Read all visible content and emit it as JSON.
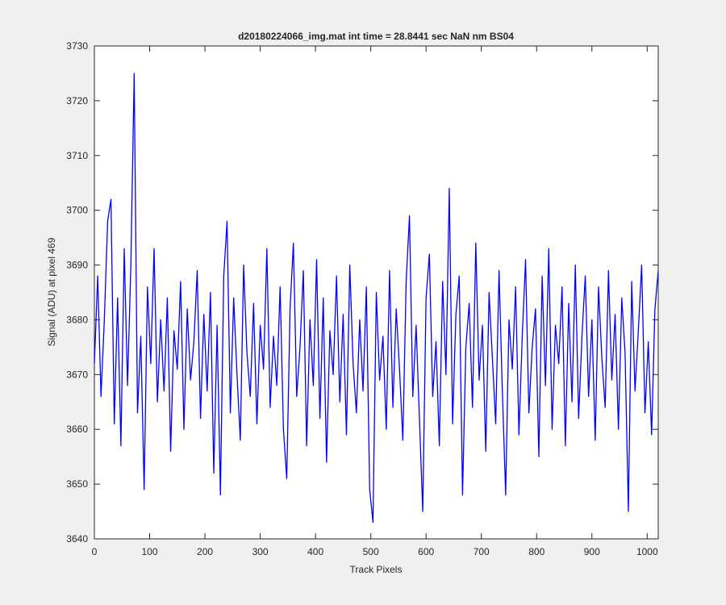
{
  "chart_data": {
    "type": "line",
    "title": "d20180224066_img.mat int time = 28.8441 sec  NaN nm BS04",
    "x_label": "Track Pixels",
    "y_label": "Signal (ADU) at pixel 469",
    "xlim": [
      0,
      1020
    ],
    "ylim": [
      3640,
      3730
    ],
    "xticks": [
      0,
      100,
      200,
      300,
      400,
      500,
      600,
      700,
      800,
      900,
      1000
    ],
    "yticks": [
      3640,
      3650,
      3660,
      3670,
      3680,
      3690,
      3700,
      3710,
      3720,
      3730
    ],
    "grid": false,
    "x": [
      0,
      6,
      12,
      18,
      24,
      30,
      36,
      42,
      48,
      54,
      60,
      66,
      72,
      78,
      84,
      90,
      96,
      102,
      108,
      114,
      120,
      126,
      132,
      138,
      144,
      150,
      156,
      162,
      168,
      174,
      180,
      186,
      192,
      198,
      204,
      210,
      216,
      222,
      228,
      234,
      240,
      246,
      252,
      258,
      264,
      270,
      276,
      282,
      288,
      294,
      300,
      306,
      312,
      318,
      324,
      330,
      336,
      342,
      348,
      354,
      360,
      366,
      372,
      378,
      384,
      390,
      396,
      402,
      408,
      414,
      420,
      426,
      432,
      438,
      444,
      450,
      456,
      462,
      468,
      474,
      480,
      486,
      492,
      498,
      504,
      510,
      516,
      522,
      528,
      534,
      540,
      546,
      552,
      558,
      564,
      570,
      576,
      582,
      588,
      594,
      600,
      606,
      612,
      618,
      624,
      630,
      636,
      642,
      648,
      654,
      660,
      666,
      672,
      678,
      684,
      690,
      696,
      702,
      708,
      714,
      720,
      726,
      732,
      738,
      744,
      750,
      756,
      762,
      768,
      774,
      780,
      786,
      792,
      798,
      804,
      810,
      816,
      822,
      828,
      834,
      840,
      846,
      852,
      858,
      864,
      870,
      876,
      882,
      888,
      894,
      900,
      906,
      912,
      918,
      924,
      930,
      936,
      942,
      948,
      954,
      960,
      966,
      972,
      978,
      984,
      990,
      996,
      1002,
      1008,
      1014,
      1020
    ],
    "series": [
      {
        "color": "#0000ff",
        "values": [
          3672,
          3688,
          3666,
          3680,
          3698,
          3702,
          3661,
          3684,
          3657,
          3693,
          3668,
          3690,
          3725,
          3663,
          3677,
          3649,
          3686,
          3672,
          3693,
          3665,
          3680,
          3667,
          3684,
          3656,
          3678,
          3671,
          3687,
          3660,
          3682,
          3669,
          3676,
          3689,
          3662,
          3681,
          3667,
          3685,
          3652,
          3679,
          3648,
          3688,
          3698,
          3663,
          3684,
          3670,
          3658,
          3690,
          3674,
          3666,
          3683,
          3661,
          3679,
          3671,
          3693,
          3664,
          3677,
          3668,
          3686,
          3660,
          3651,
          3682,
          3694,
          3666,
          3675,
          3689,
          3657,
          3680,
          3668,
          3691,
          3662,
          3684,
          3654,
          3678,
          3670,
          3688,
          3665,
          3681,
          3659,
          3690,
          3672,
          3663,
          3680,
          3667,
          3686,
          3649,
          3643,
          3685,
          3669,
          3677,
          3660,
          3689,
          3664,
          3682,
          3671,
          3658,
          3687,
          3699,
          3666,
          3679,
          3662,
          3645,
          3684,
          3692,
          3666,
          3676,
          3657,
          3687,
          3670,
          3704,
          3661,
          3681,
          3688,
          3648,
          3675,
          3683,
          3664,
          3694,
          3669,
          3679,
          3656,
          3685,
          3673,
          3661,
          3689,
          3667,
          3648,
          3680,
          3671,
          3686,
          3659,
          3677,
          3691,
          3663,
          3675,
          3682,
          3655,
          3688,
          3668,
          3693,
          3660,
          3679,
          3672,
          3686,
          3657,
          3683,
          3665,
          3690,
          3662,
          3677,
          3688,
          3666,
          3680,
          3658,
          3686,
          3673,
          3664,
          3689,
          3669,
          3681,
          3660,
          3684,
          3674,
          3645,
          3687,
          3667,
          3678,
          3690,
          3663,
          3676,
          3659,
          3682,
          3689
        ]
      }
    ]
  }
}
